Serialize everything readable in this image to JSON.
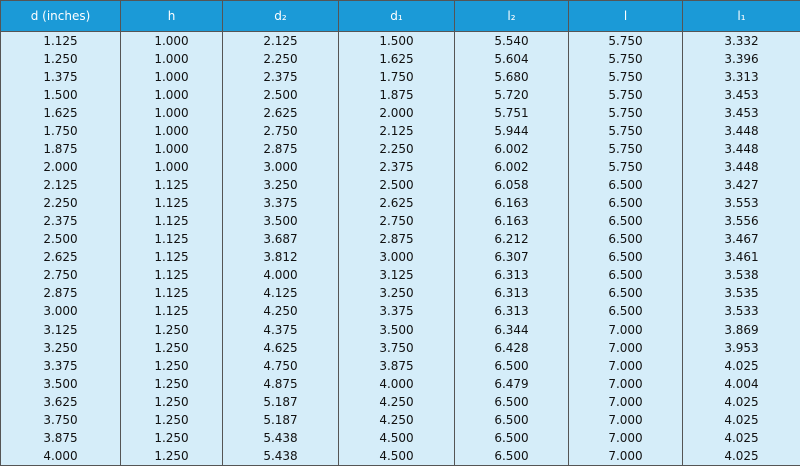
{
  "table": {
    "header": [
      "d (inches)",
      "h",
      "d₂",
      "d₁",
      "l₂",
      "l",
      "l₁"
    ],
    "rows": [
      [
        "1.125",
        "1.000",
        "2.125",
        "1.500",
        "5.540",
        "5.750",
        "3.332"
      ],
      [
        "1.250",
        "1.000",
        "2.250",
        "1.625",
        "5.604",
        "5.750",
        "3.396"
      ],
      [
        "1.375",
        "1.000",
        "2.375",
        "1.750",
        "5.680",
        "5.750",
        "3.313"
      ],
      [
        "1.500",
        "1.000",
        "2.500",
        "1.875",
        "5.720",
        "5.750",
        "3.453"
      ],
      [
        "1.625",
        "1.000",
        "2.625",
        "2.000",
        "5.751",
        "5.750",
        "3.453"
      ],
      [
        "1.750",
        "1.000",
        "2.750",
        "2.125",
        "5.944",
        "5.750",
        "3.448"
      ],
      [
        "1.875",
        "1.000",
        "2.875",
        "2.250",
        "6.002",
        "5.750",
        "3.448"
      ],
      [
        "2.000",
        "1.000",
        "3.000",
        "2.375",
        "6.002",
        "5.750",
        "3.448"
      ],
      [
        "2.125",
        "1.125",
        "3.250",
        "2.500",
        "6.058",
        "6.500",
        "3.427"
      ],
      [
        "2.250",
        "1.125",
        "3.375",
        "2.625",
        "6.163",
        "6.500",
        "3.553"
      ],
      [
        "2.375",
        "1.125",
        "3.500",
        "2.750",
        "6.163",
        "6.500",
        "3.556"
      ],
      [
        "2.500",
        "1.125",
        "3.687",
        "2.875",
        "6.212",
        "6.500",
        "3.467"
      ],
      [
        "2.625",
        "1.125",
        "3.812",
        "3.000",
        "6.307",
        "6.500",
        "3.461"
      ],
      [
        "2.750",
        "1.125",
        "4.000",
        "3.125",
        "6.313",
        "6.500",
        "3.538"
      ],
      [
        "2.875",
        "1.125",
        "4.125",
        "3.250",
        "6.313",
        "6.500",
        "3.535"
      ],
      [
        "3.000",
        "1.125",
        "4.250",
        "3.375",
        "6.313",
        "6.500",
        "3.533"
      ],
      [
        "3.125",
        "1.250",
        "4.375",
        "3.500",
        "6.344",
        "7.000",
        "3.869"
      ],
      [
        "3.250",
        "1.250",
        "4.625",
        "3.750",
        "6.428",
        "7.000",
        "3.953"
      ],
      [
        "3.375",
        "1.250",
        "4.750",
        "3.875",
        "6.500",
        "7.000",
        "4.025"
      ],
      [
        "3.500",
        "1.250",
        "4.875",
        "4.000",
        "6.479",
        "7.000",
        "4.004"
      ],
      [
        "3.625",
        "1.250",
        "5.187",
        "4.250",
        "6.500",
        "7.000",
        "4.025"
      ],
      [
        "3.750",
        "1.250",
        "5.187",
        "4.250",
        "6.500",
        "7.000",
        "4.025"
      ],
      [
        "3.875",
        "1.250",
        "5.438",
        "4.500",
        "6.500",
        "7.000",
        "4.025"
      ],
      [
        "4.000",
        "1.250",
        "5.438",
        "4.500",
        "6.500",
        "7.000",
        "4.025"
      ]
    ]
  }
}
